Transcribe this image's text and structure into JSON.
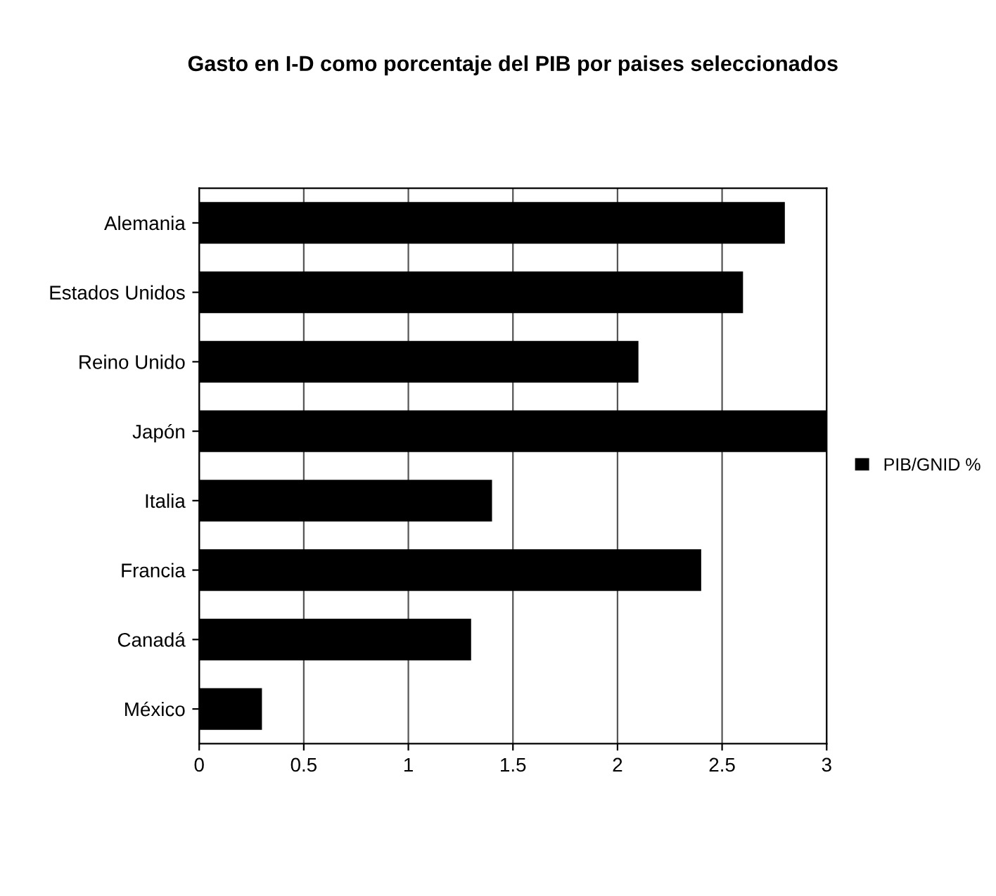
{
  "chart_data": {
    "type": "bar",
    "orientation": "horizontal",
    "title": "Gasto en I-D como porcentaje del PIB por paises seleccionados",
    "categories": [
      "Alemania",
      "Estados Unidos",
      "Reino Unido",
      "Japón",
      "Italia",
      "Francia",
      "Canadá",
      "México"
    ],
    "series": [
      {
        "name": "PIB/GNID %",
        "color": "#000000",
        "values": [
          2.8,
          2.6,
          2.1,
          3.0,
          1.4,
          2.4,
          1.3,
          0.3
        ]
      }
    ],
    "xlim": [
      0,
      3
    ],
    "xticks": [
      0,
      0.5,
      1,
      1.5,
      2,
      2.5,
      3
    ],
    "grid": "x",
    "legend": "right"
  }
}
